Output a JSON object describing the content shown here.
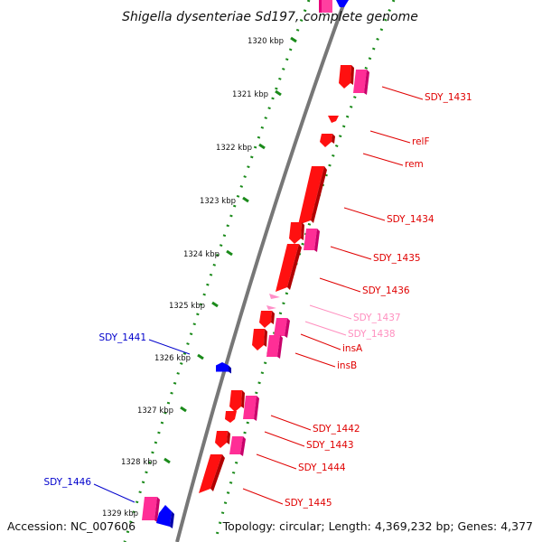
{
  "title": "Shigella dysenteriae Sd197, complete genome",
  "accession": "Accession: NC_007606",
  "topology": "Topology: circular; Length: 4,369,232 bp; Genes: 4,377",
  "colors": {
    "forward_cds": "#ff0000",
    "reverse_cds": "#ff0000",
    "rna": "#ff69b4",
    "other_strand_feature": "#0000ff",
    "label_red": "#e00000",
    "label_pink": "#ff8fbf",
    "label_blue": "#0000cc",
    "backbone": "#808080",
    "tick_dots": "#008000"
  },
  "kbp_ticks": [
    "1320 kbp",
    "1321 kbp",
    "1322 kbp",
    "1323 kbp",
    "1324 kbp",
    "1325 kbp",
    "1326 kbp",
    "1327 kbp",
    "1328 kbp",
    "1329 kbp"
  ],
  "gene_labels": [
    {
      "name": "SDY_1431",
      "color": "red"
    },
    {
      "name": "relF",
      "color": "red"
    },
    {
      "name": "rem",
      "color": "red"
    },
    {
      "name": "SDY_1434",
      "color": "red"
    },
    {
      "name": "SDY_1435",
      "color": "red"
    },
    {
      "name": "SDY_1436",
      "color": "red"
    },
    {
      "name": "SDY_1437",
      "color": "pink"
    },
    {
      "name": "SDY_1438",
      "color": "pink"
    },
    {
      "name": "insA",
      "color": "red"
    },
    {
      "name": "insB",
      "color": "red"
    },
    {
      "name": "SDY_1442",
      "color": "red"
    },
    {
      "name": "SDY_1443",
      "color": "red"
    },
    {
      "name": "SDY_1444",
      "color": "red"
    },
    {
      "name": "SDY_1445",
      "color": "red"
    },
    {
      "name": "SDY_1441",
      "color": "blue"
    },
    {
      "name": "SDY_1446",
      "color": "blue"
    }
  ]
}
